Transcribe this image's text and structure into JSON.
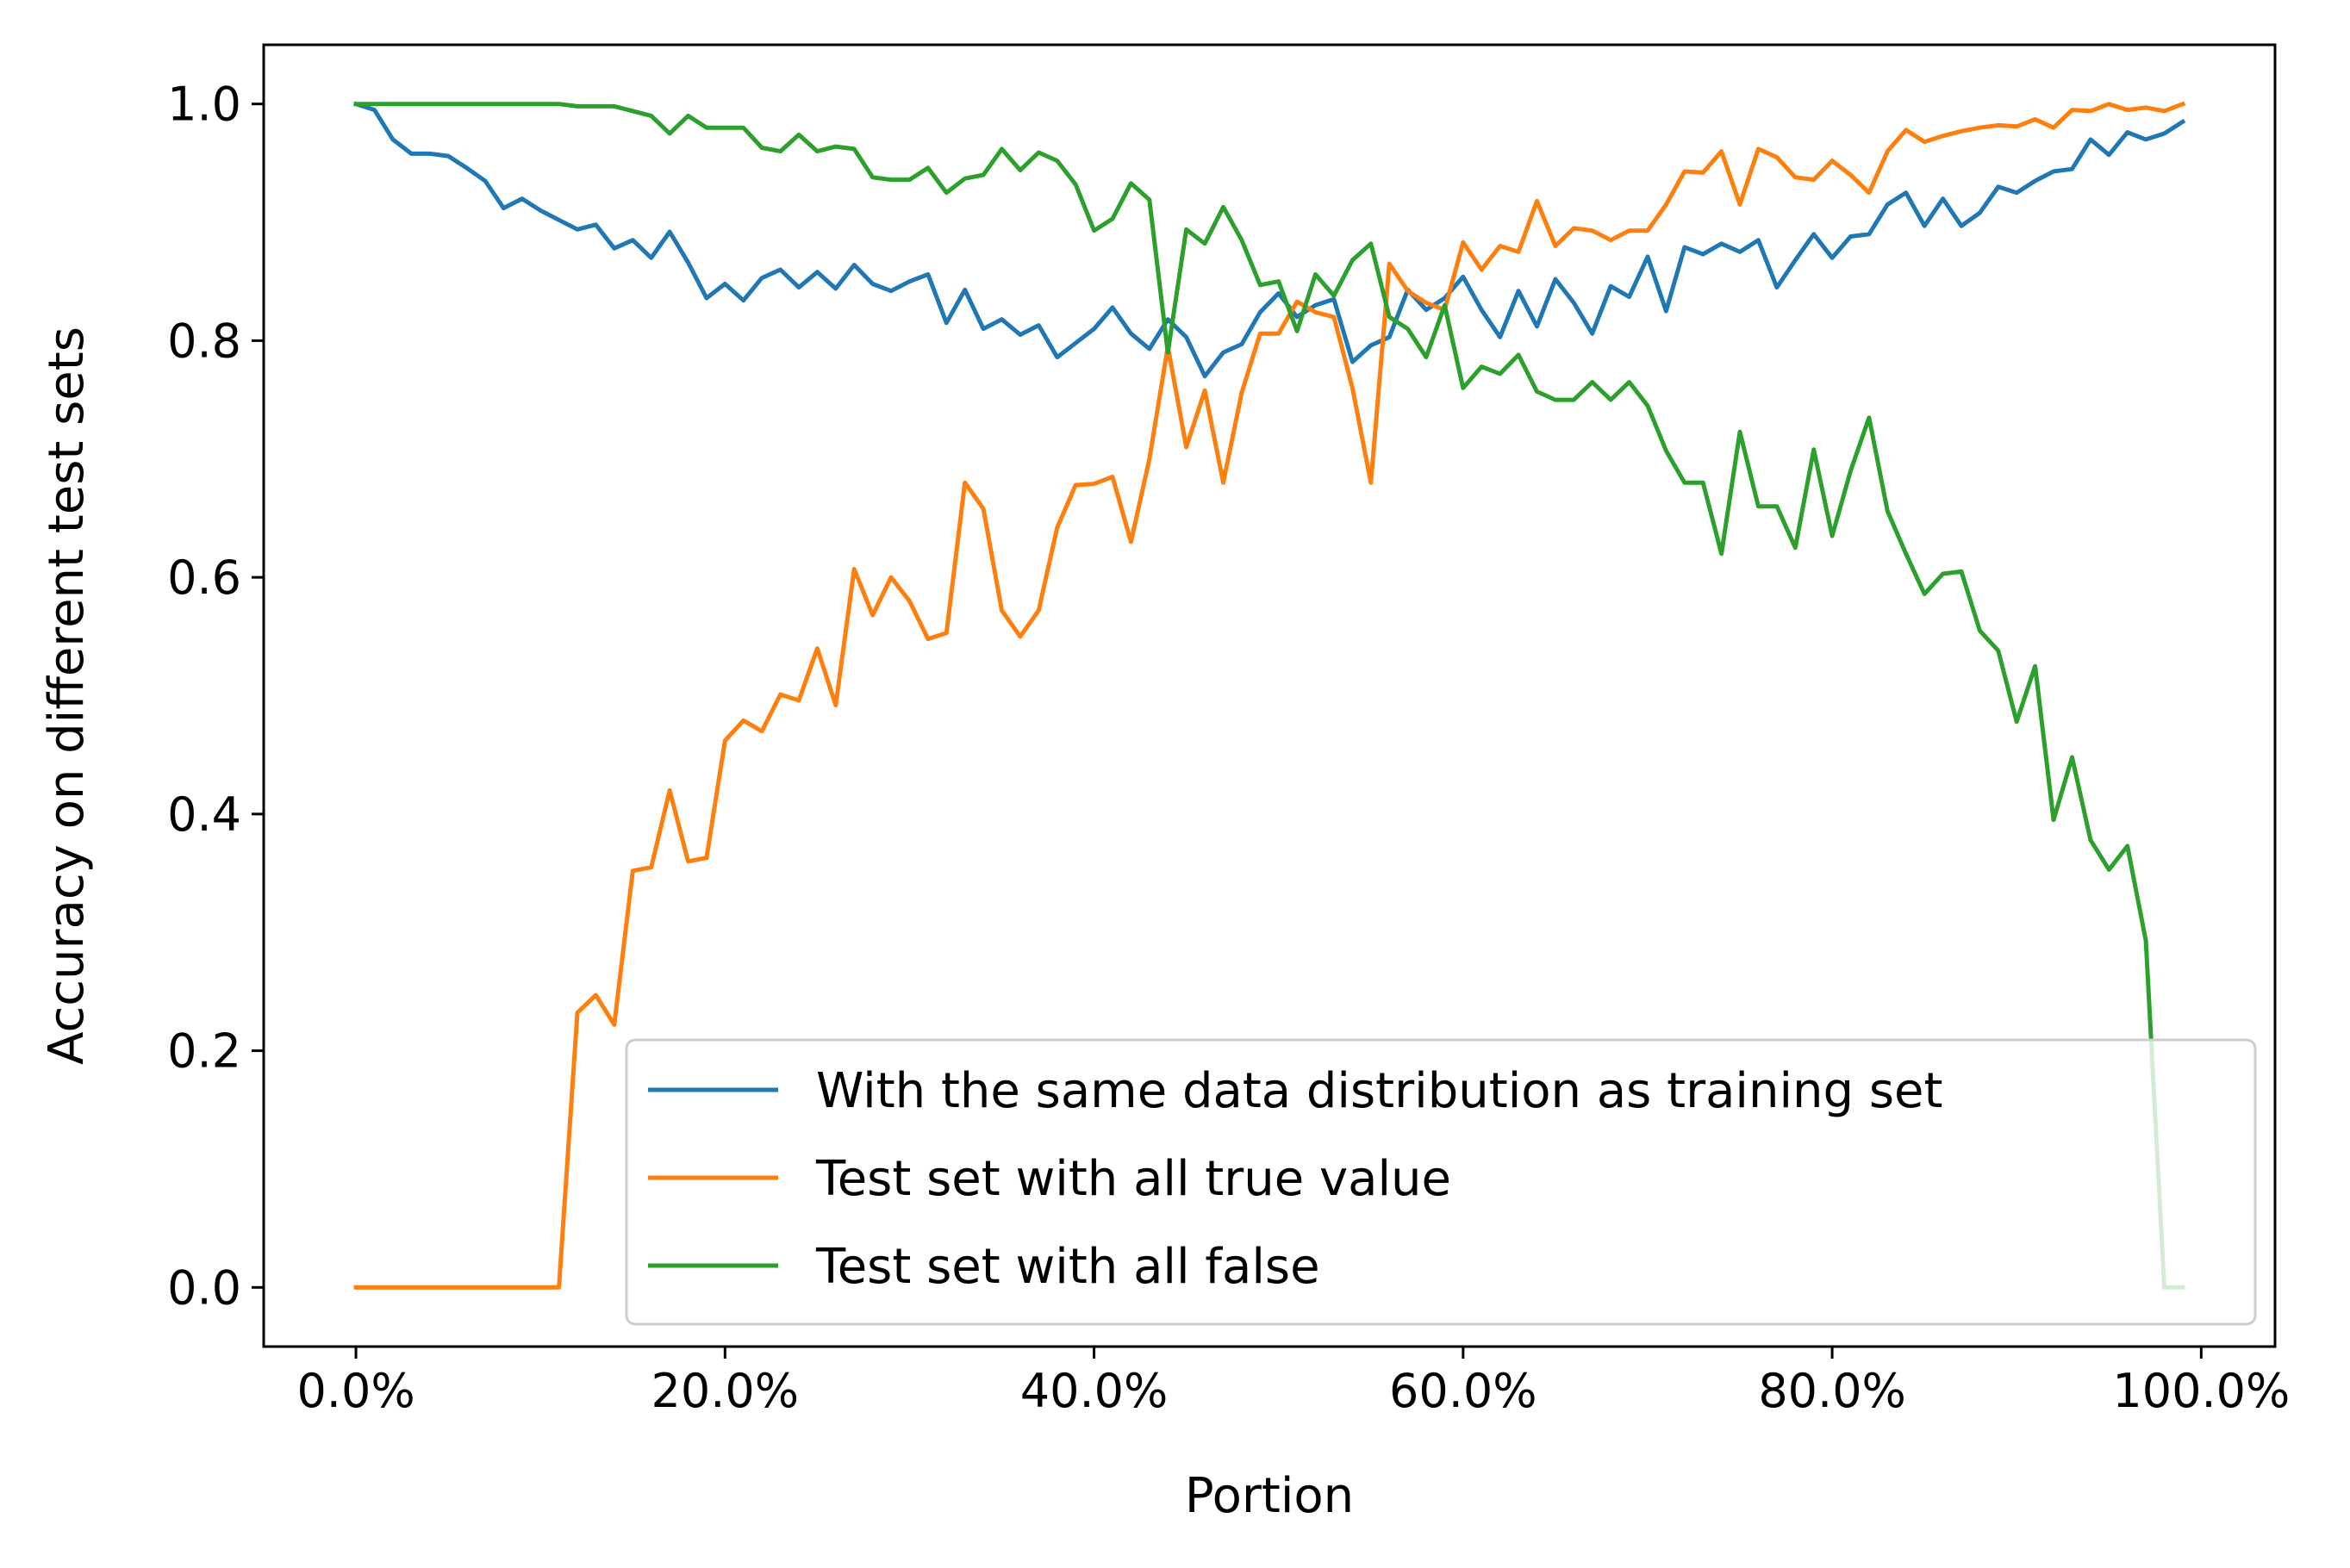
{
  "chart_data": {
    "type": "line",
    "xlabel": "Portion",
    "ylabel": "Accuracy on different test sets",
    "xlim": [
      -0.05,
      1.04
    ],
    "ylim": [
      -0.05,
      1.05
    ],
    "x_ticks": [
      {
        "value": 0.0,
        "label": "0.0%"
      },
      {
        "value": 0.2,
        "label": "20.0%"
      },
      {
        "value": 0.4,
        "label": "40.0%"
      },
      {
        "value": 0.6,
        "label": "60.0%"
      },
      {
        "value": 0.8,
        "label": "80.0%"
      },
      {
        "value": 1.0,
        "label": "100.0%"
      }
    ],
    "y_ticks": [
      {
        "value": 0.0,
        "label": "0.0"
      },
      {
        "value": 0.2,
        "label": "0.2"
      },
      {
        "value": 0.4,
        "label": "0.4"
      },
      {
        "value": 0.6,
        "label": "0.6"
      },
      {
        "value": 0.8,
        "label": "0.8"
      },
      {
        "value": 1.0,
        "label": "1.0"
      }
    ],
    "legend_position": "lower-right",
    "grid": false,
    "x": [
      0.0,
      0.01,
      0.02,
      0.03,
      0.04,
      0.05,
      0.06,
      0.07,
      0.08,
      0.09,
      0.1,
      0.11,
      0.12,
      0.13,
      0.14,
      0.15,
      0.16,
      0.17,
      0.18,
      0.19,
      0.2,
      0.21,
      0.22,
      0.23,
      0.24,
      0.25,
      0.26,
      0.27,
      0.28,
      0.29,
      0.3,
      0.31,
      0.32,
      0.33,
      0.34,
      0.35,
      0.36,
      0.37,
      0.38,
      0.39,
      0.4,
      0.41,
      0.42,
      0.43,
      0.44,
      0.45,
      0.46,
      0.47,
      0.48,
      0.49,
      0.5,
      0.51,
      0.52,
      0.53,
      0.54,
      0.55,
      0.56,
      0.57,
      0.58,
      0.59,
      0.6,
      0.61,
      0.62,
      0.63,
      0.64,
      0.65,
      0.66,
      0.67,
      0.68,
      0.69,
      0.7,
      0.71,
      0.72,
      0.73,
      0.74,
      0.75,
      0.76,
      0.77,
      0.78,
      0.79,
      0.8,
      0.81,
      0.82,
      0.83,
      0.84,
      0.85,
      0.86,
      0.87,
      0.88,
      0.89,
      0.9,
      0.91,
      0.92,
      0.93,
      0.94,
      0.95,
      0.96,
      0.97,
      0.98,
      0.99
    ],
    "series": [
      {
        "name": "With the same data distribution as training set",
        "color": "#1f77b4",
        "values": [
          1.0,
          0.995,
          0.97,
          0.958,
          0.958,
          0.956,
          0.946,
          0.935,
          0.912,
          0.92,
          0.91,
          0.902,
          0.894,
          0.898,
          0.878,
          0.885,
          0.87,
          0.892,
          0.866,
          0.836,
          0.848,
          0.834,
          0.853,
          0.86,
          0.845,
          0.858,
          0.844,
          0.864,
          0.848,
          0.842,
          0.85,
          0.856,
          0.815,
          0.843,
          0.81,
          0.818,
          0.805,
          0.813,
          0.786,
          0.798,
          0.81,
          0.828,
          0.806,
          0.793,
          0.818,
          0.803,
          0.77,
          0.79,
          0.797,
          0.824,
          0.84,
          0.82,
          0.83,
          0.835,
          0.782,
          0.796,
          0.803,
          0.843,
          0.826,
          0.836,
          0.854,
          0.826,
          0.803,
          0.842,
          0.812,
          0.852,
          0.832,
          0.806,
          0.846,
          0.837,
          0.871,
          0.825,
          0.879,
          0.873,
          0.882,
          0.875,
          0.885,
          0.845,
          0.868,
          0.89,
          0.87,
          0.888,
          0.89,
          0.915,
          0.925,
          0.897,
          0.92,
          0.897,
          0.908,
          0.93,
          0.925,
          0.935,
          0.943,
          0.945,
          0.97,
          0.957,
          0.976,
          0.97,
          0.975,
          0.985
        ]
      },
      {
        "name": "Test set with all true value",
        "color": "#ff7f0e",
        "values": [
          0.0,
          0.0,
          0.0,
          0.0,
          0.0,
          0.0,
          0.0,
          0.0,
          0.0,
          0.0,
          0.0,
          0.0,
          0.232,
          0.247,
          0.222,
          0.352,
          0.355,
          0.42,
          0.36,
          0.363,
          0.462,
          0.479,
          0.47,
          0.501,
          0.496,
          0.54,
          0.492,
          0.607,
          0.568,
          0.6,
          0.58,
          0.548,
          0.553,
          0.68,
          0.658,
          0.572,
          0.55,
          0.572,
          0.642,
          0.678,
          0.679,
          0.685,
          0.63,
          0.7,
          0.795,
          0.71,
          0.758,
          0.68,
          0.756,
          0.806,
          0.806,
          0.833,
          0.824,
          0.82,
          0.76,
          0.68,
          0.865,
          0.842,
          0.832,
          0.826,
          0.883,
          0.86,
          0.88,
          0.875,
          0.918,
          0.88,
          0.895,
          0.893,
          0.885,
          0.893,
          0.893,
          0.915,
          0.943,
          0.942,
          0.96,
          0.915,
          0.962,
          0.955,
          0.938,
          0.936,
          0.952,
          0.94,
          0.925,
          0.96,
          0.978,
          0.968,
          0.973,
          0.977,
          0.98,
          0.982,
          0.981,
          0.987,
          0.98,
          0.995,
          0.994,
          1.0,
          0.995,
          0.997,
          0.994,
          1.0
        ]
      },
      {
        "name": "Test set with all false",
        "color": "#2ca02c",
        "values": [
          1.0,
          1.0,
          1.0,
          1.0,
          1.0,
          1.0,
          1.0,
          1.0,
          1.0,
          1.0,
          1.0,
          1.0,
          0.998,
          0.998,
          0.998,
          0.994,
          0.99,
          0.975,
          0.99,
          0.98,
          0.98,
          0.98,
          0.963,
          0.96,
          0.974,
          0.96,
          0.964,
          0.962,
          0.938,
          0.936,
          0.936,
          0.946,
          0.925,
          0.937,
          0.94,
          0.962,
          0.944,
          0.959,
          0.952,
          0.932,
          0.893,
          0.903,
          0.933,
          0.919,
          0.79,
          0.894,
          0.882,
          0.913,
          0.885,
          0.847,
          0.85,
          0.808,
          0.856,
          0.838,
          0.868,
          0.882,
          0.82,
          0.81,
          0.786,
          0.83,
          0.76,
          0.778,
          0.772,
          0.788,
          0.757,
          0.75,
          0.75,
          0.765,
          0.75,
          0.765,
          0.745,
          0.707,
          0.68,
          0.68,
          0.62,
          0.723,
          0.66,
          0.66,
          0.625,
          0.708,
          0.635,
          0.69,
          0.735,
          0.656,
          0.62,
          0.586,
          0.603,
          0.605,
          0.555,
          0.538,
          0.478,
          0.525,
          0.395,
          0.448,
          0.378,
          0.353,
          0.373,
          0.293,
          0.0,
          0.0
        ]
      }
    ]
  }
}
